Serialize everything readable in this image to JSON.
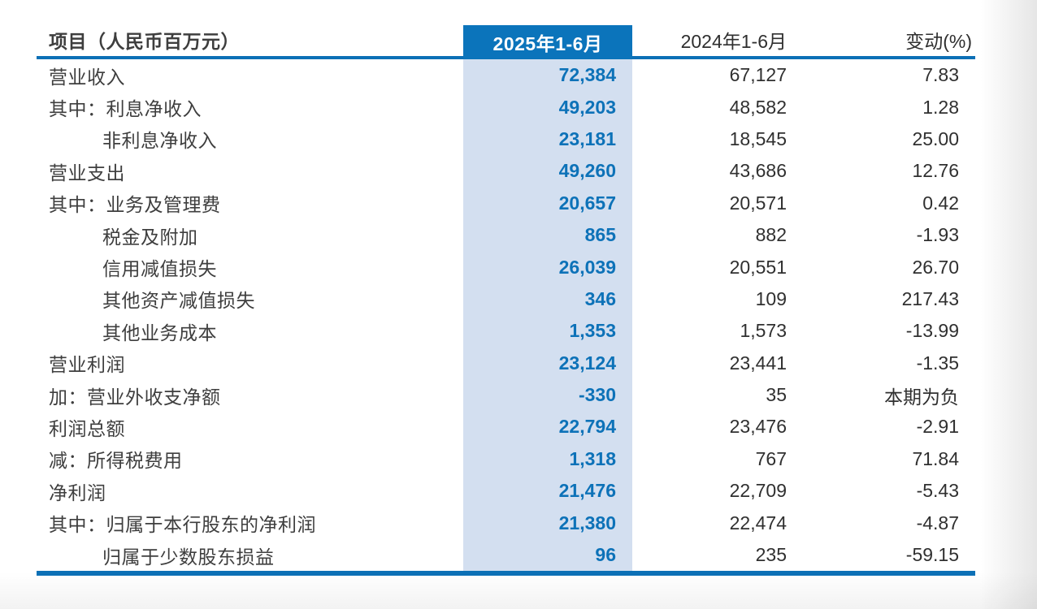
{
  "header": {
    "item": "项目（人民币百万元）",
    "period_current": "2025年1-6月",
    "period_prior": "2024年1-6月",
    "change": "变动(%)"
  },
  "rows": [
    {
      "label": "营业收入",
      "indent": 0,
      "current": "72,384",
      "prior": "67,127",
      "change": "7.83"
    },
    {
      "label": "其中：利息净收入",
      "indent": 0,
      "current": "49,203",
      "prior": "48,582",
      "change": "1.28"
    },
    {
      "label": "非利息净收入",
      "indent": 1,
      "current": "23,181",
      "prior": "18,545",
      "change": "25.00"
    },
    {
      "label": "营业支出",
      "indent": 0,
      "current": "49,260",
      "prior": "43,686",
      "change": "12.76"
    },
    {
      "label": "其中：业务及管理费",
      "indent": 0,
      "current": "20,657",
      "prior": "20,571",
      "change": "0.42"
    },
    {
      "label": "税金及附加",
      "indent": 1,
      "current": "865",
      "prior": "882",
      "change": "-1.93"
    },
    {
      "label": "信用减值损失",
      "indent": 1,
      "current": "26,039",
      "prior": "20,551",
      "change": "26.70"
    },
    {
      "label": "其他资产减值损失",
      "indent": 1,
      "current": "346",
      "prior": "109",
      "change": "217.43"
    },
    {
      "label": "其他业务成本",
      "indent": 1,
      "current": "1,353",
      "prior": "1,573",
      "change": "-13.99"
    },
    {
      "label": "营业利润",
      "indent": 0,
      "current": "23,124",
      "prior": "23,441",
      "change": "-1.35"
    },
    {
      "label": "加：营业外收支净额",
      "indent": 0,
      "current": "-330",
      "prior": "35",
      "change": "本期为负"
    },
    {
      "label": "利润总额",
      "indent": 0,
      "current": "22,794",
      "prior": "23,476",
      "change": "-2.91"
    },
    {
      "label": "减：所得税费用",
      "indent": 0,
      "current": "1,318",
      "prior": "767",
      "change": "71.84"
    },
    {
      "label": "净利润",
      "indent": 0,
      "current": "21,476",
      "prior": "22,709",
      "change": "-5.43"
    },
    {
      "label": "其中：归属于本行股东的净利润",
      "indent": 0,
      "current": "21,380",
      "prior": "22,474",
      "change": "-4.87"
    },
    {
      "label": "归属于少数股东损益",
      "indent": 1,
      "current": "96",
      "prior": "235",
      "change": "-59.15"
    }
  ],
  "colors": {
    "accent_blue": "#0b74bb",
    "column_highlight": "#d3dff0",
    "value_blue": "#0d72b8",
    "rule_blue": "#0c70b6"
  }
}
